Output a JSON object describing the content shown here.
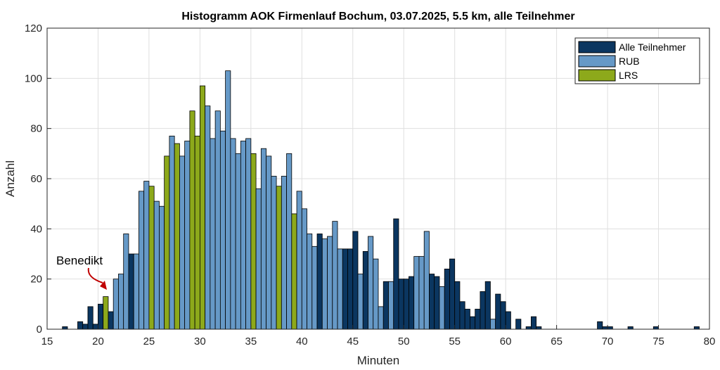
{
  "chart_data": {
    "type": "bar",
    "title": "Histogramm AOK Firmenlauf Bochum, 03.07.2025, 5.5 km, alle Teilnehmer",
    "xlabel": "Minuten",
    "ylabel": "Anzahl",
    "xlim": [
      15,
      80
    ],
    "ylim": [
      0,
      120
    ],
    "xticks": [
      15,
      20,
      25,
      30,
      35,
      40,
      45,
      50,
      55,
      60,
      65,
      70,
      75,
      80
    ],
    "yticks": [
      0,
      20,
      40,
      60,
      80,
      100,
      120
    ],
    "grid": true,
    "legend_position": "top-right",
    "bin_width_minutes": 0.5,
    "legend": [
      "Alle Teilnehmer",
      "RUB",
      "LRS"
    ],
    "colors": {
      "Alle Teilnehmer": "#0b3660",
      "RUB": "#6699c7",
      "LRS": "#8da91b"
    },
    "bins": [
      {
        "x": 16.5,
        "value": 1,
        "group": "Alle Teilnehmer"
      },
      {
        "x": 18.0,
        "value": 3,
        "group": "Alle Teilnehmer"
      },
      {
        "x": 18.5,
        "value": 2,
        "group": "Alle Teilnehmer"
      },
      {
        "x": 19.0,
        "value": 9,
        "group": "Alle Teilnehmer"
      },
      {
        "x": 19.5,
        "value": 2,
        "group": "Alle Teilnehmer"
      },
      {
        "x": 20.0,
        "value": 10,
        "group": "Alle Teilnehmer"
      },
      {
        "x": 20.5,
        "value": 13,
        "group": "LRS"
      },
      {
        "x": 21.0,
        "value": 7,
        "group": "Alle Teilnehmer"
      },
      {
        "x": 21.5,
        "value": 20,
        "group": "RUB"
      },
      {
        "x": 22.0,
        "value": 22,
        "group": "RUB"
      },
      {
        "x": 22.5,
        "value": 38,
        "group": "RUB"
      },
      {
        "x": 23.0,
        "value": 30,
        "group": "Alle Teilnehmer"
      },
      {
        "x": 23.5,
        "value": 30,
        "group": "RUB"
      },
      {
        "x": 24.0,
        "value": 55,
        "group": "RUB"
      },
      {
        "x": 24.5,
        "value": 59,
        "group": "RUB"
      },
      {
        "x": 25.0,
        "value": 57,
        "group": "LRS"
      },
      {
        "x": 25.5,
        "value": 51,
        "group": "RUB"
      },
      {
        "x": 26.0,
        "value": 49,
        "group": "RUB"
      },
      {
        "x": 26.5,
        "value": 69,
        "group": "LRS"
      },
      {
        "x": 27.0,
        "value": 77,
        "group": "RUB"
      },
      {
        "x": 27.5,
        "value": 74,
        "group": "LRS"
      },
      {
        "x": 28.0,
        "value": 69,
        "group": "RUB"
      },
      {
        "x": 28.5,
        "value": 75,
        "group": "RUB"
      },
      {
        "x": 29.0,
        "value": 87,
        "group": "LRS"
      },
      {
        "x": 29.5,
        "value": 77,
        "group": "LRS"
      },
      {
        "x": 30.0,
        "value": 97,
        "group": "LRS"
      },
      {
        "x": 30.5,
        "value": 89,
        "group": "RUB"
      },
      {
        "x": 31.0,
        "value": 76,
        "group": "RUB"
      },
      {
        "x": 31.5,
        "value": 87,
        "group": "RUB"
      },
      {
        "x": 32.0,
        "value": 79,
        "group": "RUB"
      },
      {
        "x": 32.5,
        "value": 103,
        "group": "RUB"
      },
      {
        "x": 33.0,
        "value": 76,
        "group": "RUB"
      },
      {
        "x": 33.5,
        "value": 70,
        "group": "RUB"
      },
      {
        "x": 34.0,
        "value": 75,
        "group": "RUB"
      },
      {
        "x": 34.5,
        "value": 76,
        "group": "RUB"
      },
      {
        "x": 35.0,
        "value": 70,
        "group": "LRS"
      },
      {
        "x": 35.5,
        "value": 56,
        "group": "RUB"
      },
      {
        "x": 36.0,
        "value": 72,
        "group": "RUB"
      },
      {
        "x": 36.5,
        "value": 69,
        "group": "RUB"
      },
      {
        "x": 37.0,
        "value": 61,
        "group": "RUB"
      },
      {
        "x": 37.5,
        "value": 57,
        "group": "LRS"
      },
      {
        "x": 38.0,
        "value": 61,
        "group": "RUB"
      },
      {
        "x": 38.5,
        "value": 70,
        "group": "RUB"
      },
      {
        "x": 39.0,
        "value": 46,
        "group": "LRS"
      },
      {
        "x": 39.5,
        "value": 55,
        "group": "RUB"
      },
      {
        "x": 40.0,
        "value": 48,
        "group": "RUB"
      },
      {
        "x": 40.5,
        "value": 38,
        "group": "RUB"
      },
      {
        "x": 41.0,
        "value": 33,
        "group": "RUB"
      },
      {
        "x": 41.5,
        "value": 38,
        "group": "Alle Teilnehmer"
      },
      {
        "x": 42.0,
        "value": 36,
        "group": "RUB"
      },
      {
        "x": 42.5,
        "value": 37,
        "group": "RUB"
      },
      {
        "x": 43.0,
        "value": 43,
        "group": "RUB"
      },
      {
        "x": 43.5,
        "value": 32,
        "group": "RUB"
      },
      {
        "x": 44.0,
        "value": 32,
        "group": "Alle Teilnehmer"
      },
      {
        "x": 44.5,
        "value": 32,
        "group": "Alle Teilnehmer"
      },
      {
        "x": 45.0,
        "value": 39,
        "group": "Alle Teilnehmer"
      },
      {
        "x": 45.5,
        "value": 22,
        "group": "RUB"
      },
      {
        "x": 46.0,
        "value": 31,
        "group": "Alle Teilnehmer"
      },
      {
        "x": 46.5,
        "value": 37,
        "group": "RUB"
      },
      {
        "x": 47.0,
        "value": 28,
        "group": "RUB"
      },
      {
        "x": 47.5,
        "value": 9,
        "group": "RUB"
      },
      {
        "x": 48.0,
        "value": 19,
        "group": "Alle Teilnehmer"
      },
      {
        "x": 48.5,
        "value": 19,
        "group": "RUB"
      },
      {
        "x": 49.0,
        "value": 44,
        "group": "Alle Teilnehmer"
      },
      {
        "x": 49.5,
        "value": 20,
        "group": "Alle Teilnehmer"
      },
      {
        "x": 50.0,
        "value": 20,
        "group": "Alle Teilnehmer"
      },
      {
        "x": 50.5,
        "value": 21,
        "group": "Alle Teilnehmer"
      },
      {
        "x": 51.0,
        "value": 29,
        "group": "RUB"
      },
      {
        "x": 51.5,
        "value": 29,
        "group": "RUB"
      },
      {
        "x": 52.0,
        "value": 39,
        "group": "RUB"
      },
      {
        "x": 52.5,
        "value": 22,
        "group": "Alle Teilnehmer"
      },
      {
        "x": 53.0,
        "value": 21,
        "group": "Alle Teilnehmer"
      },
      {
        "x": 53.5,
        "value": 17,
        "group": "RUB"
      },
      {
        "x": 54.0,
        "value": 24,
        "group": "Alle Teilnehmer"
      },
      {
        "x": 54.5,
        "value": 28,
        "group": "Alle Teilnehmer"
      },
      {
        "x": 55.0,
        "value": 19,
        "group": "Alle Teilnehmer"
      },
      {
        "x": 55.5,
        "value": 11,
        "group": "Alle Teilnehmer"
      },
      {
        "x": 56.0,
        "value": 8,
        "group": "Alle Teilnehmer"
      },
      {
        "x": 56.5,
        "value": 5,
        "group": "Alle Teilnehmer"
      },
      {
        "x": 57.0,
        "value": 8,
        "group": "Alle Teilnehmer"
      },
      {
        "x": 57.5,
        "value": 15,
        "group": "Alle Teilnehmer"
      },
      {
        "x": 58.0,
        "value": 19,
        "group": "Alle Teilnehmer"
      },
      {
        "x": 58.5,
        "value": 4,
        "group": "RUB"
      },
      {
        "x": 59.0,
        "value": 14,
        "group": "Alle Teilnehmer"
      },
      {
        "x": 59.5,
        "value": 11,
        "group": "Alle Teilnehmer"
      },
      {
        "x": 60.0,
        "value": 7,
        "group": "Alle Teilnehmer"
      },
      {
        "x": 61.0,
        "value": 4,
        "group": "Alle Teilnehmer"
      },
      {
        "x": 62.0,
        "value": 1,
        "group": "Alle Teilnehmer"
      },
      {
        "x": 62.5,
        "value": 5,
        "group": "Alle Teilnehmer"
      },
      {
        "x": 63.0,
        "value": 1,
        "group": "Alle Teilnehmer"
      },
      {
        "x": 69.0,
        "value": 3,
        "group": "Alle Teilnehmer"
      },
      {
        "x": 69.5,
        "value": 1,
        "group": "Alle Teilnehmer"
      },
      {
        "x": 70.0,
        "value": 1,
        "group": "Alle Teilnehmer"
      },
      {
        "x": 72.0,
        "value": 1,
        "group": "Alle Teilnehmer"
      },
      {
        "x": 74.5,
        "value": 1,
        "group": "Alle Teilnehmer"
      },
      {
        "x": 78.5,
        "value": 1,
        "group": "Alle Teilnehmer"
      }
    ],
    "annotations": [
      {
        "text": "Benedikt",
        "target_x": 20.75,
        "target_y": 13,
        "color": "#c00000"
      }
    ]
  }
}
